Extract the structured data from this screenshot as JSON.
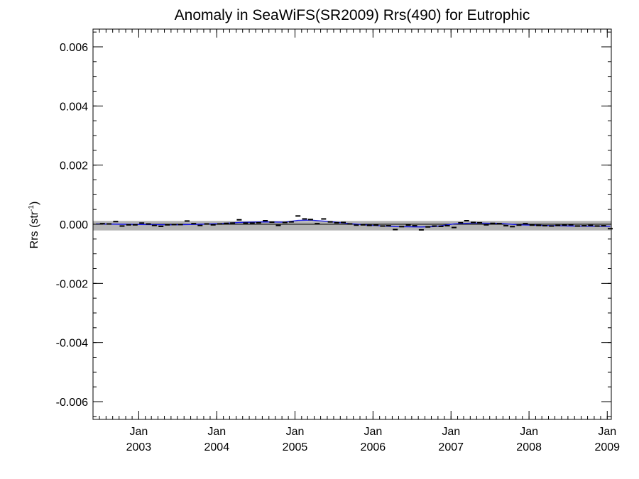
{
  "chart_data": {
    "type": "line",
    "title": "Anomaly in SeaWiFS(SR2009) Rrs(490) for Eutrophic",
    "ylabel_main": "Rrs (str",
    "ylabel_sup": "-1",
    "ylabel_close": ")",
    "xlabel": "",
    "x_range": [
      "2002-06-01",
      "2009-01-20"
    ],
    "ylim": [
      -0.0066,
      0.0066
    ],
    "y_ticks": [
      -0.006,
      -0.004,
      -0.002,
      0.0,
      0.002,
      0.004,
      0.006
    ],
    "y_tick_labels": [
      "-0.006",
      "-0.004",
      "-0.002",
      "0.000",
      "0.002",
      "0.004",
      "0.006"
    ],
    "x_ticks": [
      "2003-01-01",
      "2004-01-01",
      "2005-01-01",
      "2006-01-01",
      "2007-01-01",
      "2008-01-01",
      "2009-01-01"
    ],
    "x_tick_labels": [
      {
        "month": "Jan",
        "year": "2003"
      },
      {
        "month": "Jan",
        "year": "2004"
      },
      {
        "month": "Jan",
        "year": "2005"
      },
      {
        "month": "Jan",
        "year": "2006"
      },
      {
        "month": "Jan",
        "year": "2007"
      },
      {
        "month": "Jan",
        "year": "2008"
      },
      {
        "month": "Jan",
        "year": "2009"
      }
    ],
    "grid": false,
    "band": {
      "lower": -0.00021,
      "upper": 0.00011,
      "color": "#b4b4b4"
    },
    "zero_line": {
      "y": 0.0,
      "color": "#000000"
    },
    "series": [
      {
        "kind": "monthly_anomaly_markers",
        "color": "#000000",
        "x": [
          "2002-07",
          "2002-08",
          "2002-09",
          "2002-10",
          "2002-11",
          "2002-12",
          "2003-01",
          "2003-02",
          "2003-03",
          "2003-04",
          "2003-05",
          "2003-06",
          "2003-07",
          "2003-08",
          "2003-09",
          "2003-10",
          "2003-11",
          "2003-12",
          "2004-01",
          "2004-02",
          "2004-03",
          "2004-04",
          "2004-05",
          "2004-06",
          "2004-07",
          "2004-08",
          "2004-09",
          "2004-10",
          "2004-11",
          "2004-12",
          "2005-01",
          "2005-02",
          "2005-03",
          "2005-04",
          "2005-05",
          "2005-06",
          "2005-07",
          "2005-08",
          "2005-09",
          "2005-10",
          "2005-11",
          "2005-12",
          "2006-01",
          "2006-02",
          "2006-03",
          "2006-04",
          "2006-05",
          "2006-06",
          "2006-07",
          "2006-08",
          "2006-09",
          "2006-10",
          "2006-11",
          "2006-12",
          "2007-01",
          "2007-02",
          "2007-03",
          "2007-04",
          "2007-05",
          "2007-06",
          "2007-07",
          "2007-08",
          "2007-09",
          "2007-10",
          "2007-11",
          "2007-12",
          "2008-01",
          "2008-02",
          "2008-03",
          "2008-04",
          "2008-05",
          "2008-06",
          "2008-07",
          "2008-08",
          "2008-09",
          "2008-10",
          "2008-11",
          "2008-12",
          "2009-01"
        ],
        "y": [
          2e-05,
          1e-05,
          9e-05,
          -6e-05,
          -2e-05,
          -2e-05,
          4e-05,
          1e-05,
          -4e-05,
          -7e-05,
          -2e-05,
          -1e-05,
          -1e-05,
          0.00011,
          2e-05,
          -4e-05,
          1e-05,
          -2e-05,
          1e-05,
          3e-05,
          4e-05,
          0.00015,
          4e-05,
          4e-05,
          5e-05,
          0.00012,
          7e-05,
          -4e-05,
          6e-05,
          8e-05,
          0.00028,
          0.00018,
          0.00016,
          2e-05,
          0.00018,
          8e-05,
          5e-05,
          6e-05,
          1e-05,
          -3e-05,
          -2e-05,
          -4e-05,
          -3e-05,
          -6e-05,
          -5e-05,
          -0.00018,
          -8e-05,
          -3e-05,
          -5e-05,
          -0.00019,
          -9e-05,
          -6e-05,
          -7e-05,
          -5e-05,
          -0.00011,
          5e-05,
          0.00012,
          6e-05,
          5e-05,
          -2e-05,
          3e-05,
          2e-05,
          -5e-05,
          -8e-05,
          -3e-05,
          2e-05,
          -3e-05,
          -4e-05,
          -5e-05,
          -6e-05,
          -4e-05,
          -3e-05,
          -2e-05,
          -6e-05,
          -5e-05,
          -4e-05,
          -6e-05,
          -5e-05,
          -0.00015
        ]
      },
      {
        "kind": "smoothed_line",
        "color": "#1a1ae6",
        "x": [
          "2002-06",
          "2002-10",
          "2003-02",
          "2003-06",
          "2003-10",
          "2004-01",
          "2004-04",
          "2004-08",
          "2004-11",
          "2005-01",
          "2005-03",
          "2005-06",
          "2005-09",
          "2005-12",
          "2006-04",
          "2006-08",
          "2006-10",
          "2007-01",
          "2007-04",
          "2007-08",
          "2007-11",
          "2008-03",
          "2008-07",
          "2008-12",
          "2009-01"
        ],
        "y": [
          1e-05,
          0.0,
          -1e-05,
          -2e-05,
          0.0,
          2e-05,
          6e-05,
          8e-05,
          7e-05,
          0.00013,
          0.00014,
          9e-05,
          2e-05,
          -3e-05,
          -8e-05,
          -9e-05,
          -8e-05,
          1e-05,
          4e-05,
          3e-05,
          -2e-05,
          -4e-05,
          -6e-05,
          -7e-05,
          -7e-05
        ]
      }
    ]
  }
}
